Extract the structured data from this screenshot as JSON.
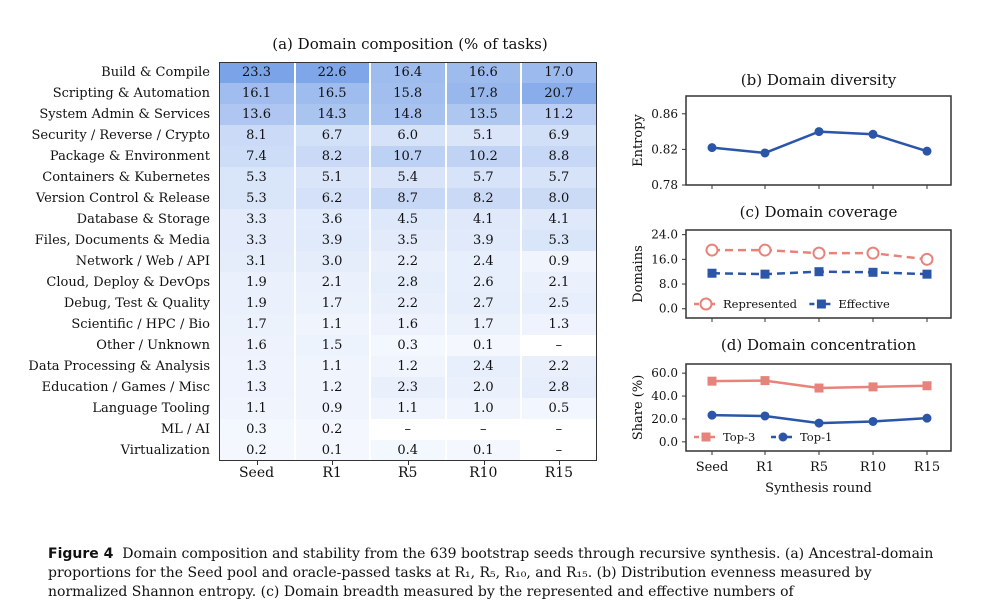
{
  "heatmap": {
    "title": "(a) Domain composition (% of tasks)",
    "columns": [
      "Seed",
      "R1",
      "R5",
      "R10",
      "R15"
    ],
    "rows": [
      {
        "label": "Build & Compile",
        "values": [
          "23.3",
          "22.6",
          "16.4",
          "16.6",
          "17.0"
        ]
      },
      {
        "label": "Scripting & Automation",
        "values": [
          "16.1",
          "16.5",
          "15.8",
          "17.8",
          "20.7"
        ]
      },
      {
        "label": "System Admin & Services",
        "values": [
          "13.6",
          "14.3",
          "14.8",
          "13.5",
          "11.2"
        ]
      },
      {
        "label": "Security / Reverse / Crypto",
        "values": [
          "8.1",
          "6.7",
          "6.0",
          "5.1",
          "6.9"
        ]
      },
      {
        "label": "Package & Environment",
        "values": [
          "7.4",
          "8.2",
          "10.7",
          "10.2",
          "8.8"
        ]
      },
      {
        "label": "Containers & Kubernetes",
        "values": [
          "5.3",
          "5.1",
          "5.4",
          "5.7",
          "5.7"
        ]
      },
      {
        "label": "Version Control & Release",
        "values": [
          "5.3",
          "6.2",
          "8.7",
          "8.2",
          "8.0"
        ]
      },
      {
        "label": "Database & Storage",
        "values": [
          "3.3",
          "3.6",
          "4.5",
          "4.1",
          "4.1"
        ]
      },
      {
        "label": "Files, Documents & Media",
        "values": [
          "3.3",
          "3.9",
          "3.5",
          "3.9",
          "5.3"
        ]
      },
      {
        "label": "Network / Web / API",
        "values": [
          "3.1",
          "3.0",
          "2.2",
          "2.4",
          "0.9"
        ]
      },
      {
        "label": "Cloud, Deploy & DevOps",
        "values": [
          "1.9",
          "2.1",
          "2.8",
          "2.6",
          "2.1"
        ]
      },
      {
        "label": "Debug, Test & Quality",
        "values": [
          "1.9",
          "1.7",
          "2.2",
          "2.7",
          "2.5"
        ]
      },
      {
        "label": "Scientific / HPC / Bio",
        "values": [
          "1.7",
          "1.1",
          "1.6",
          "1.7",
          "1.3"
        ]
      },
      {
        "label": "Other / Unknown",
        "values": [
          "1.6",
          "1.5",
          "0.3",
          "0.1",
          "–"
        ]
      },
      {
        "label": "Data Processing & Analysis",
        "values": [
          "1.3",
          "1.1",
          "1.2",
          "2.4",
          "2.2"
        ]
      },
      {
        "label": "Education / Games / Misc",
        "values": [
          "1.3",
          "1.2",
          "2.3",
          "2.0",
          "2.8"
        ]
      },
      {
        "label": "Language Tooling",
        "values": [
          "1.1",
          "0.9",
          "1.1",
          "1.0",
          "0.5"
        ]
      },
      {
        "label": "ML / AI",
        "values": [
          "0.3",
          "0.2",
          "–",
          "–",
          "–"
        ]
      },
      {
        "label": "Virtualization",
        "values": [
          "0.2",
          "0.1",
          "0.4",
          "0.1",
          "–"
        ]
      }
    ],
    "scale_max": 23.3,
    "low_color": "#f5f8fe",
    "high_color": "#7ba3e8"
  },
  "chart_data": [
    {
      "type": "line",
      "title": "(b) Domain diversity",
      "ylabel": "Entropy",
      "x": [
        "Seed",
        "R1",
        "R5",
        "R10",
        "R15"
      ],
      "ylim": [
        0.78,
        0.88
      ],
      "yticks": [
        "0.78",
        "0.82",
        "0.86"
      ],
      "series": [
        {
          "values": [
            0.822,
            0.816,
            0.84,
            0.837,
            0.818
          ],
          "color": "#2b55a8",
          "marker": "circle",
          "dash": false
        }
      ]
    },
    {
      "type": "line",
      "title": "(c) Domain coverage",
      "ylabel": "Domains",
      "x": [
        "Seed",
        "R1",
        "R5",
        "R10",
        "R15"
      ],
      "ylim": [
        -3,
        25.5
      ],
      "yticks": [
        "0.0",
        "8.0",
        "16.0",
        "24.0"
      ],
      "legend": "bottom-left",
      "series": [
        {
          "name": "Represented",
          "values": [
            19,
            19,
            18,
            18,
            16
          ],
          "color": "#e8837c",
          "marker": "open-circle",
          "dash": true
        },
        {
          "name": "Effective",
          "values": [
            11.5,
            11.2,
            12.0,
            11.8,
            11.2
          ],
          "color": "#2b55a8",
          "marker": "square",
          "dash": true
        }
      ]
    },
    {
      "type": "line",
      "title": "(d) Domain concentration",
      "ylabel": "Share (%)",
      "xlabel": "Synthesis round",
      "x": [
        "Seed",
        "R1",
        "R5",
        "R10",
        "R15"
      ],
      "ylim": [
        -8,
        68
      ],
      "yticks": [
        "0.0",
        "20.0",
        "40.0",
        "60.0"
      ],
      "legend": "bottom-left",
      "series": [
        {
          "name": "Top-3",
          "values": [
            53,
            53.5,
            47,
            48,
            49
          ],
          "color": "#e8837c",
          "marker": "square",
          "dash": false
        },
        {
          "name": "Top-1",
          "values": [
            23.3,
            22.6,
            16.4,
            17.8,
            20.7
          ],
          "color": "#2b55a8",
          "marker": "circle",
          "dash": false
        }
      ]
    }
  ],
  "caption": {
    "head": "Figure 4",
    "text": "Domain composition and stability from the 639 bootstrap seeds through recursive synthesis. (a) Ancestral-domain proportions for the Seed pool and oracle-passed tasks at R₁, R₅, R₁₀, and R₁₅. (b) Distribution evenness measured by normalized Shannon entropy. (c) Domain breadth measured by the represented and effective numbers of"
  }
}
